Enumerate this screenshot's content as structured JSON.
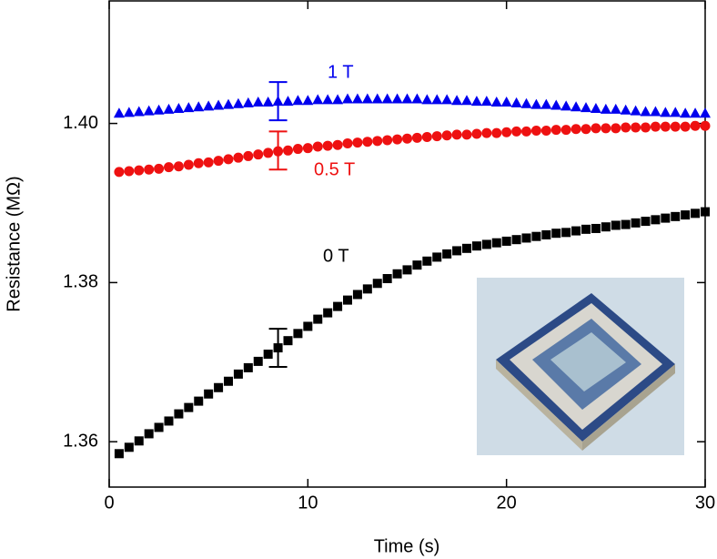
{
  "chart_data": {
    "type": "scatter",
    "x_label": "Time (s)",
    "y_label": "Resistance (MΩ)",
    "xlim": [
      0,
      30
    ],
    "ylim": [
      1.3543,
      1.4154
    ],
    "xticks": [
      0,
      10,
      20,
      30
    ],
    "yticks": [
      1.36,
      1.38,
      {
        "value": 1.4,
        "label": "1.40"
      }
    ],
    "grid": false,
    "x": [
      0.5,
      1,
      1.5,
      2,
      2.5,
      3,
      3.5,
      4,
      4.5,
      5,
      5.5,
      6,
      6.5,
      7,
      7.5,
      8,
      8.5,
      9,
      9.5,
      10,
      10.5,
      11,
      11.5,
      12,
      12.5,
      13,
      13.5,
      14,
      14.5,
      15,
      15.5,
      16,
      16.5,
      17,
      17.5,
      18,
      18.5,
      19,
      19.5,
      20,
      20.5,
      21,
      21.5,
      22,
      22.5,
      23,
      23.5,
      24,
      24.5,
      25,
      25.5,
      26,
      26.5,
      27,
      27.5,
      28,
      28.5,
      29,
      29.5,
      30
    ],
    "series": [
      {
        "name": "1 T",
        "color": "#0000ee",
        "marker": "triangle",
        "values": [
          1.4013,
          1.4014,
          1.4015,
          1.4016,
          1.4017,
          1.4018,
          1.4019,
          1.402,
          1.4021,
          1.4022,
          1.4023,
          1.4024,
          1.4025,
          1.4026,
          1.4027,
          1.4027,
          1.4028,
          1.4028,
          1.4029,
          1.4029,
          1.403,
          1.403,
          1.403,
          1.4031,
          1.4031,
          1.4031,
          1.4031,
          1.4031,
          1.4031,
          1.4031,
          1.4031,
          1.403,
          1.403,
          1.403,
          1.4029,
          1.4029,
          1.4028,
          1.4028,
          1.4027,
          1.4027,
          1.4026,
          1.4025,
          1.4024,
          1.4024,
          1.4023,
          1.4022,
          1.4021,
          1.402,
          1.4019,
          1.4018,
          1.4018,
          1.4017,
          1.4016,
          1.4015,
          1.4015,
          1.4014,
          1.4014,
          1.4013,
          1.4013,
          1.4013
        ],
        "error_bar": {
          "x": 8.5,
          "y": 1.4028,
          "error": 0.0024
        }
      },
      {
        "name": "0.5 T",
        "color": "#ee1111",
        "marker": "circle",
        "values": [
          1.3939,
          1.394,
          1.3941,
          1.3942,
          1.3943,
          1.3945,
          1.3946,
          1.3948,
          1.395,
          1.3951,
          1.3953,
          1.3955,
          1.3957,
          1.3959,
          1.3961,
          1.3963,
          1.3965,
          1.3966,
          1.3968,
          1.3969,
          1.3971,
          1.3972,
          1.3973,
          1.3975,
          1.3976,
          1.3977,
          1.3978,
          1.3979,
          1.398,
          1.3981,
          1.3982,
          1.3983,
          1.3984,
          1.3985,
          1.3986,
          1.3986,
          1.3987,
          1.3988,
          1.3988,
          1.3989,
          1.399,
          1.399,
          1.3991,
          1.3991,
          1.3992,
          1.3992,
          1.3993,
          1.3993,
          1.3994,
          1.3994,
          1.3994,
          1.3995,
          1.3995,
          1.3995,
          1.3996,
          1.3996,
          1.3996,
          1.3996,
          1.3997,
          1.3997
        ],
        "error_bar": {
          "x": 8.5,
          "y": 1.3966,
          "error": 0.0024
        }
      },
      {
        "name": "0 T",
        "color": "#000000",
        "marker": "square",
        "values": [
          1.3585,
          1.3593,
          1.3601,
          1.361,
          1.3618,
          1.3626,
          1.3635,
          1.3643,
          1.3651,
          1.366,
          1.3668,
          1.3676,
          1.3685,
          1.3693,
          1.3701,
          1.371,
          1.3718,
          1.3727,
          1.3736,
          1.3745,
          1.3754,
          1.3762,
          1.377,
          1.3778,
          1.3785,
          1.3792,
          1.3799,
          1.3805,
          1.3811,
          1.3816,
          1.3822,
          1.3827,
          1.3832,
          1.3836,
          1.384,
          1.3843,
          1.3846,
          1.3848,
          1.385,
          1.3852,
          1.3854,
          1.3856,
          1.3858,
          1.386,
          1.3862,
          1.3863,
          1.3865,
          1.3867,
          1.3868,
          1.387,
          1.3872,
          1.3873,
          1.3875,
          1.3877,
          1.3879,
          1.3881,
          1.3883,
          1.3885,
          1.3887,
          1.3889
        ],
        "error_bar": {
          "x": 8.5,
          "y": 1.3718,
          "error": 0.0024
        }
      }
    ]
  }
}
